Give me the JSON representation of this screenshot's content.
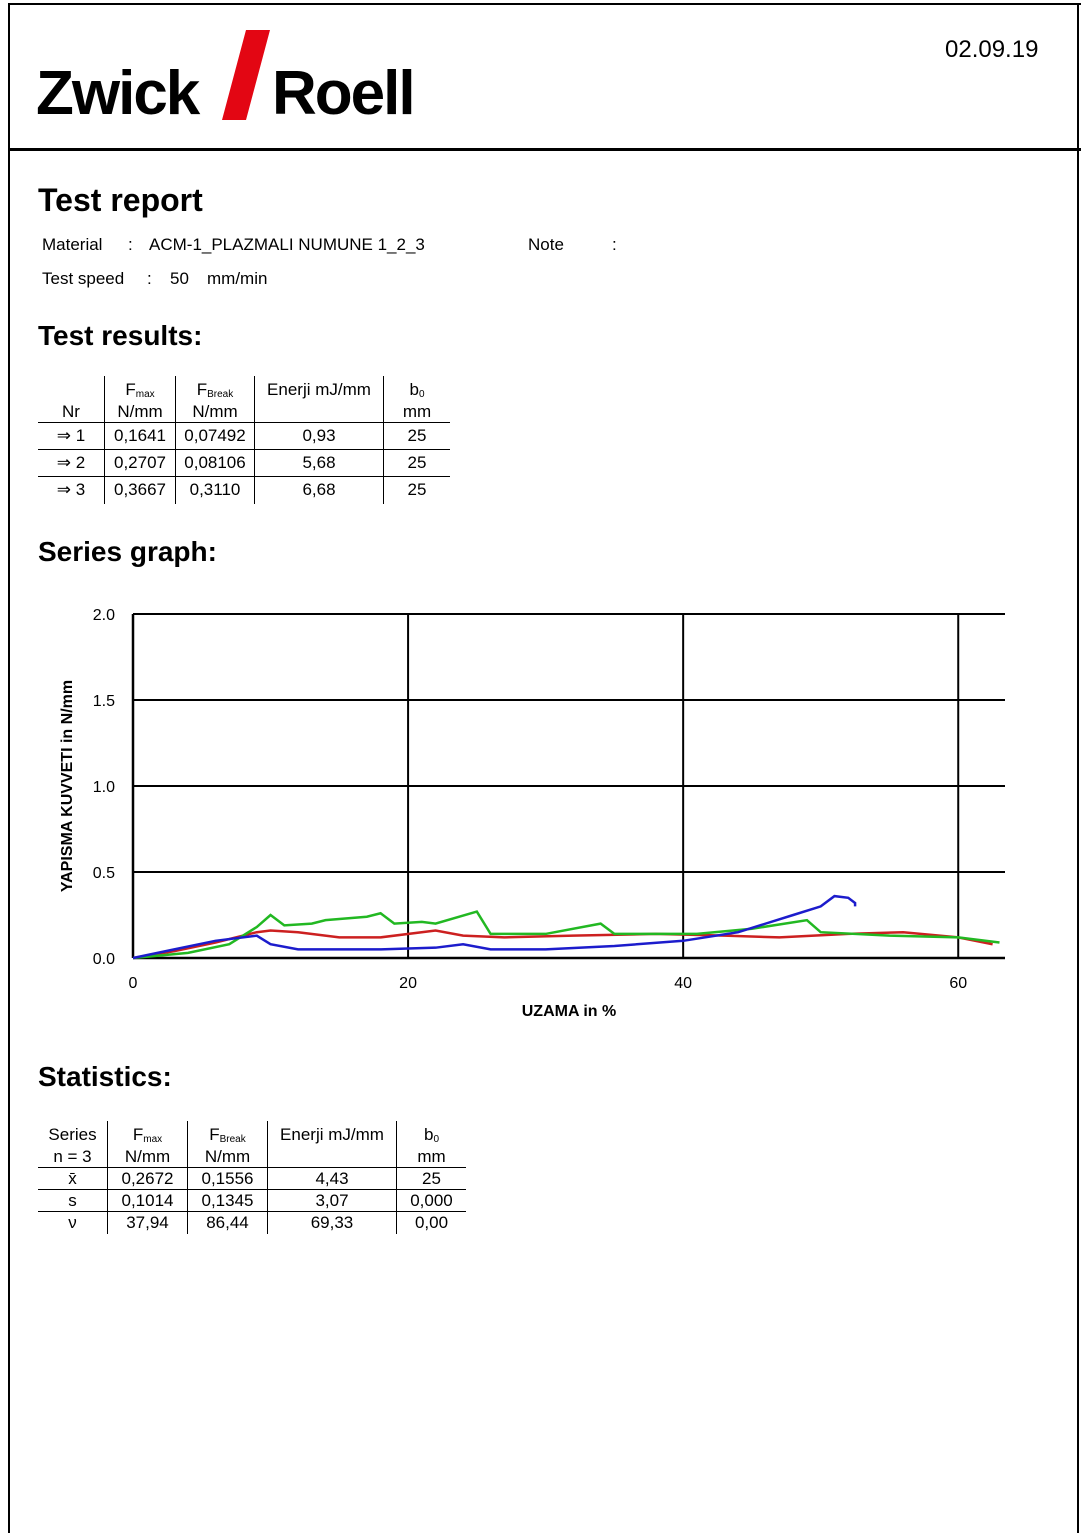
{
  "header": {
    "logo_left": "Zwick",
    "logo_right": "Roell",
    "date": "02.09.19"
  },
  "report": {
    "title": "Test report",
    "separator": ":",
    "material_label": "Material",
    "material": "ACM-1_PLAZMALI NUMUNE 1_2_3",
    "note_label": "Note",
    "speed_label": "Test speed",
    "speed": "50",
    "speed_unit": "mm/min"
  },
  "results": {
    "title": "Test results:",
    "columns": [
      {
        "bottom": "Nr"
      },
      {
        "symbol": "F",
        "sub": "max",
        "bottom": "N/mm"
      },
      {
        "symbol": "F",
        "sub": "Break",
        "bottom": "N/mm"
      },
      {
        "top": "Enerji mJ/mm"
      },
      {
        "symbol": "b",
        "sub": "0",
        "bottom": "mm"
      }
    ],
    "rows": [
      [
        "⇒ 1",
        "0,1641",
        "0,07492",
        "0,93",
        "25"
      ],
      [
        "⇒ 2",
        "0,2707",
        "0,08106",
        "5,68",
        "25"
      ],
      [
        "⇒ 3",
        "0,3667",
        "0,3110",
        "6,68",
        "25"
      ]
    ]
  },
  "graph_title": "Series graph:",
  "chart_data": {
    "type": "line",
    "xlabel": "UZAMA in %",
    "ylabel": "YAPISMA KUVVETI in N/mm",
    "xlim": [
      0,
      63.4
    ],
    "ylim": [
      0,
      2.0
    ],
    "xticks": [
      0,
      20,
      40,
      60
    ],
    "yticks": [
      {
        "value": 0,
        "label": "0.0"
      },
      0.5,
      {
        "value": 1,
        "label": "1.0"
      },
      1.5,
      {
        "value": 2,
        "label": "2.0"
      }
    ],
    "grid": true,
    "series": [
      {
        "color": "#cc2020",
        "x": [
          0,
          3,
          6,
          9,
          10,
          12,
          15,
          18,
          22,
          24,
          27,
          32,
          38,
          43,
          47,
          52,
          56,
          60,
          62.5
        ],
        "values": [
          0,
          0.04,
          0.09,
          0.15,
          0.16,
          0.15,
          0.12,
          0.12,
          0.16,
          0.13,
          0.12,
          0.13,
          0.14,
          0.13,
          0.12,
          0.14,
          0.15,
          0.12,
          0.08
        ]
      },
      {
        "color": "#22b822",
        "x": [
          0,
          4,
          7,
          9,
          10,
          11,
          13,
          14,
          17,
          18,
          19,
          21,
          22,
          25,
          26,
          30,
          34,
          35,
          41,
          45,
          49,
          50,
          55,
          60,
          63
        ],
        "values": [
          0,
          0.03,
          0.08,
          0.18,
          0.25,
          0.19,
          0.2,
          0.22,
          0.24,
          0.26,
          0.2,
          0.21,
          0.2,
          0.27,
          0.14,
          0.14,
          0.2,
          0.14,
          0.14,
          0.17,
          0.22,
          0.15,
          0.13,
          0.12,
          0.09
        ]
      },
      {
        "color": "#1c1ccc",
        "x": [
          0,
          3,
          6,
          9,
          10,
          12,
          18,
          22,
          24,
          26,
          30,
          35,
          40,
          44,
          48,
          50,
          51,
          52,
          52.5,
          52.5
        ],
        "values": [
          0,
          0.05,
          0.1,
          0.13,
          0.08,
          0.05,
          0.05,
          0.06,
          0.08,
          0.05,
          0.05,
          0.07,
          0.1,
          0.15,
          0.25,
          0.3,
          0.36,
          0.35,
          0.32,
          0.3
        ]
      }
    ]
  },
  "statistics": {
    "title": "Statistics:",
    "columns": [
      {
        "top": "Series",
        "bottom": "n = 3"
      },
      {
        "symbol": "F",
        "sub": "max",
        "bottom": "N/mm"
      },
      {
        "symbol": "F",
        "sub": "Break",
        "bottom": "N/mm"
      },
      {
        "top": "Enerji mJ/mm"
      },
      {
        "symbol": "b",
        "sub": "0",
        "bottom": "mm"
      }
    ],
    "rows": [
      [
        "x̄",
        "0,2672",
        "0,1556",
        "4,43",
        "25"
      ],
      [
        "s",
        "0,1014",
        "0,1345",
        "3,07",
        "0,000"
      ],
      [
        "ν",
        "37,94",
        "86,44",
        "69,33",
        "0,00"
      ]
    ]
  }
}
